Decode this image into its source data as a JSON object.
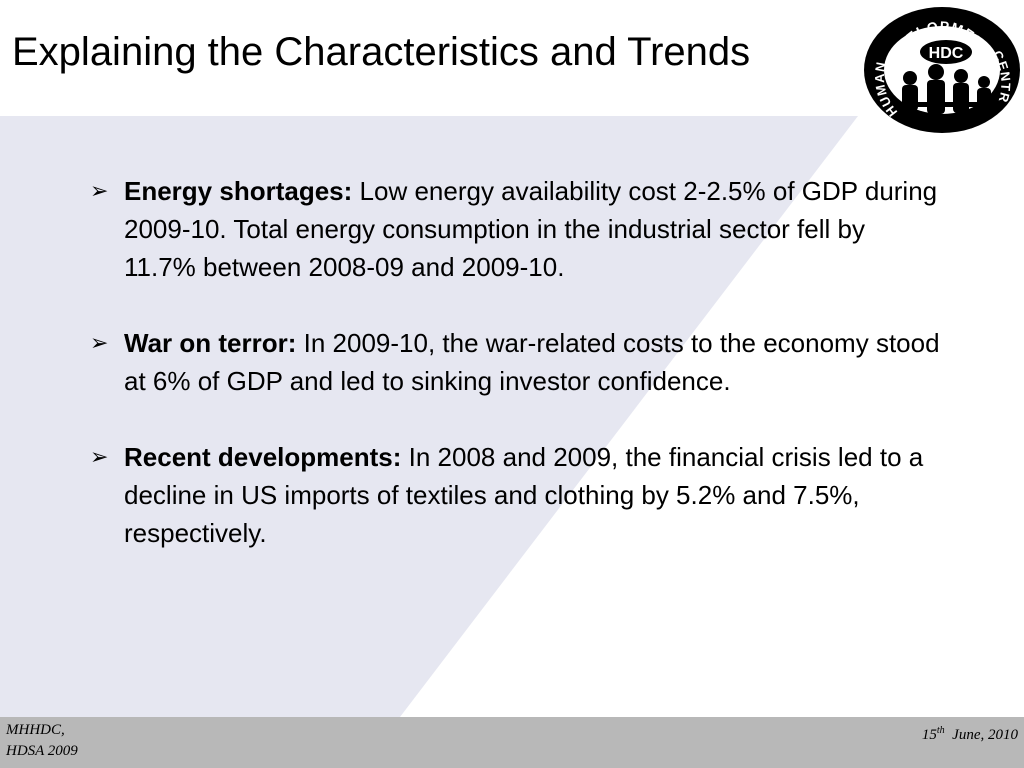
{
  "slide": {
    "title": "Explaining the Characteristics and Trends"
  },
  "logo": {
    "text_top": "DEVELOPMENT",
    "text_left": "HUMAN",
    "text_right": "CENTRE",
    "text_center": "HDC"
  },
  "bullets": [
    {
      "lead": "Energy shortages:",
      "text": "Low energy availability cost 2-2.5% of GDP during 2009-10. Total energy consumption in the industrial sector fell by 11.7% between 2008-09 and 2009-10."
    },
    {
      "lead": "War on terror:",
      "text": "In 2009-10, the war-related costs to the economy stood at 6% of GDP and led to sinking investor confidence."
    },
    {
      "lead": "Recent developments:",
      "text": "In 2008 and 2009, the financial crisis led to a decline in US imports of textiles and clothing by 5.2% and 7.5%, respectively."
    }
  ],
  "bullet_marker": "➢",
  "footer": {
    "left_line1": "MHHDC,",
    "left_line2": "HDSA 2009",
    "date_day": "15",
    "date_suffix": "th",
    "date_rest": "June, 2010"
  },
  "colors": {
    "panel_background": "#e6e7f1",
    "footer_background": "#b8b8b8",
    "text": "#000000"
  }
}
